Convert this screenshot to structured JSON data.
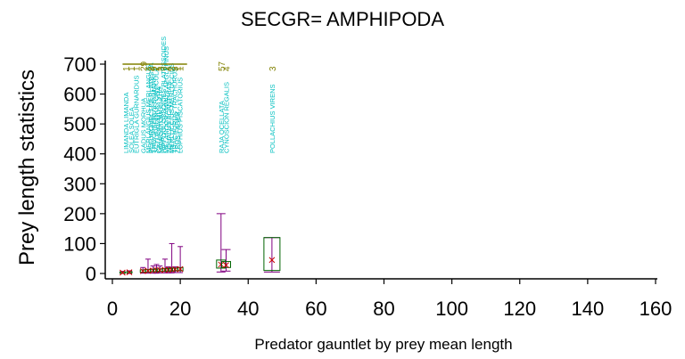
{
  "chart_data": {
    "type": "box",
    "title": "SECGR= AMPHIPODA",
    "xlabel": "Predator gauntlet by prey mean length",
    "ylabel": "Prey length statistics",
    "xlim": [
      0,
      160
    ],
    "ylim": [
      0,
      700
    ],
    "x_ticks": [
      0,
      20,
      40,
      60,
      80,
      100,
      120,
      140,
      160
    ],
    "y_ticks": [
      0,
      100,
      200,
      300,
      400,
      500,
      600,
      700
    ],
    "grid": false,
    "colors": {
      "whisker": "#800080",
      "box": "#006400",
      "mean": "#cc0000",
      "label": "#00bfbf",
      "count": "#808000",
      "axis": "#000000"
    },
    "labels": [
      {
        "x": 4,
        "text": "LIMANDA LIMANDA",
        "n": "1"
      },
      {
        "x": 5.5,
        "text": "SOLEA SOLEA",
        "n": "1"
      },
      {
        "x": 7,
        "text": "EUTRIGLA GURNARDUS",
        "n": "1"
      },
      {
        "x": 9,
        "text": "GADUS MORHUA",
        "n": "29"
      },
      {
        "x": 10.5,
        "text": "MERLANGIUS MERLANGUS",
        "n": "4"
      },
      {
        "x": 11.3,
        "text": "PLEURONECTES PLATESSA",
        "n": "2"
      },
      {
        "x": 12.1,
        "text": "TRISOPTERUS ESMARKI",
        "n": "9"
      },
      {
        "x": 12.8,
        "text": "SCYLIORHINUS CANICULA",
        "n": "2"
      },
      {
        "x": 13.5,
        "text": "CALLIONYMUS LYRA",
        "n": "1"
      },
      {
        "x": 14.2,
        "text": "MICROSTOMUS KITT",
        "n": "3"
      },
      {
        "x": 15,
        "text": "HIPPOGLOSSOIDES PLATESSOIDES",
        "n": "7"
      },
      {
        "x": 15.8,
        "text": "MELANOGRAMMUS AEGLEFINUS",
        "n": "2"
      },
      {
        "x": 16.6,
        "text": "SQUALUS ACANTHIAS",
        "n": "4"
      },
      {
        "x": 17.4,
        "text": "MERLUCCIUS MERLUCCIUS",
        "n": "2"
      },
      {
        "x": 18.2,
        "text": "TRACHURUS TRACHURUS",
        "n": "3"
      },
      {
        "x": 19,
        "text": "ZEUS FABER",
        "n": "1"
      },
      {
        "x": 19.8,
        "text": "LOPHIUS PISCATORIUS",
        "n": "1"
      },
      {
        "x": 32,
        "text": "RAJA OCELLATA",
        "n": "57"
      },
      {
        "x": 33.5,
        "text": "CYNOSCION REGALIS",
        "n": "4"
      },
      {
        "x": 47,
        "text": "POLLACHIUS VIRENS",
        "n": "3"
      }
    ],
    "boxes": [
      {
        "x": 3,
        "q1": 1,
        "q3": 5,
        "min": 0,
        "max": 7,
        "mean": 3
      },
      {
        "x": 5,
        "q1": 2,
        "q3": 6,
        "min": 0,
        "max": 9,
        "mean": 4
      },
      {
        "x": 9,
        "q1": 4,
        "q3": 12,
        "min": 1,
        "max": 20,
        "mean": 8
      },
      {
        "x": 10.5,
        "q1": 5,
        "q3": 13,
        "min": 1,
        "max": 48,
        "mean": 9
      },
      {
        "x": 12,
        "q1": 6,
        "q3": 14,
        "min": 1,
        "max": 25,
        "mean": 10
      },
      {
        "x": 13,
        "q1": 6,
        "q3": 15,
        "min": 1,
        "max": 30,
        "mean": 11
      },
      {
        "x": 14,
        "q1": 7,
        "q3": 15,
        "min": 2,
        "max": 25,
        "mean": 11
      },
      {
        "x": 15.5,
        "q1": 7,
        "q3": 16,
        "min": 2,
        "max": 48,
        "mean": 12
      },
      {
        "x": 16.5,
        "q1": 8,
        "q3": 17,
        "min": 2,
        "max": 22,
        "mean": 12
      },
      {
        "x": 17.5,
        "q1": 8,
        "q3": 18,
        "min": 2,
        "max": 100,
        "mean": 13
      },
      {
        "x": 18.5,
        "q1": 9,
        "q3": 18,
        "min": 3,
        "max": 22,
        "mean": 14
      },
      {
        "x": 20,
        "q1": 9,
        "q3": 20,
        "min": 3,
        "max": 90,
        "mean": 15
      },
      {
        "x": 32,
        "q1": 18,
        "q3": 45,
        "min": 5,
        "max": 200,
        "mean": 30
      },
      {
        "x": 33.5,
        "q1": 20,
        "q3": 40,
        "min": 8,
        "max": 80,
        "mean": 28
      },
      {
        "x": 47,
        "q1": 10,
        "q3": 120,
        "min": 5,
        "max": 120,
        "mean": 45
      }
    ]
  }
}
